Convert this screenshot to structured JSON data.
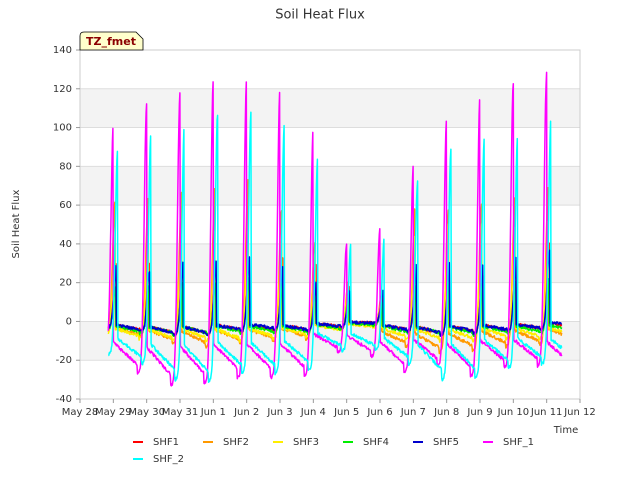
{
  "chart_data": {
    "type": "line",
    "title": "Soil Heat Flux",
    "xlabel": "Time",
    "ylabel": "Soil Heat Flux",
    "tag": "TZ_fmet",
    "ylim": [
      -40,
      140
    ],
    "yticks": [
      -40,
      -20,
      0,
      20,
      40,
      60,
      80,
      100,
      120,
      140
    ],
    "xlim": [
      0,
      15
    ],
    "xtick_labels": [
      "May 28",
      "May 29",
      "May 30",
      "May 31",
      "Jun 1",
      "Jun 2",
      "Jun 3",
      "Jun 4",
      "Jun 5",
      "Jun 6",
      "Jun 7",
      "Jun 8",
      "Jun 9",
      "Jun 10",
      "Jun 11",
      "Jun 12"
    ],
    "x_start": 0.85,
    "x_end": 14.45,
    "series": [
      {
        "name": "SHF1",
        "color": "#ff0000",
        "peak_offset": 0.03,
        "daily_peaks": [
          30,
          30,
          30,
          30,
          34,
          32,
          30,
          18,
          14,
          14,
          28,
          24,
          28,
          40,
          38
        ],
        "daily_mins": [
          -3,
          -5,
          -7,
          -7,
          -5,
          -5,
          -5,
          -3,
          -1,
          -5,
          -7,
          -6,
          -5,
          -4,
          -3
        ]
      },
      {
        "name": "SHF2",
        "color": "#ff9900",
        "peak_offset": 0.0,
        "daily_peaks": [
          62,
          63,
          67,
          70,
          75,
          57,
          40,
          20,
          13,
          59,
          57,
          60,
          64,
          69,
          68
        ],
        "daily_mins": [
          -6,
          -8,
          -11,
          -13,
          -11,
          -10,
          -9,
          -4,
          -2,
          -13,
          -16,
          -15,
          -13,
          -12,
          -10
        ]
      },
      {
        "name": "SHF3",
        "color": "#ffee00",
        "peak_offset": 0.0,
        "daily_peaks": [
          40,
          44,
          45,
          48,
          48,
          42,
          35,
          20,
          10,
          44,
          50,
          50,
          48,
          52,
          50
        ],
        "daily_mins": [
          -7,
          -9,
          -10,
          -10,
          -10,
          -9,
          -8,
          -5,
          -3,
          -9,
          -10,
          -10,
          -9,
          -9,
          -8
        ]
      },
      {
        "name": "SHF4",
        "color": "#00ee00",
        "peak_offset": 0.02,
        "daily_peaks": [
          18,
          18,
          20,
          20,
          22,
          20,
          18,
          15,
          10,
          18,
          22,
          20,
          20,
          22,
          22
        ],
        "daily_mins": [
          -4,
          -6,
          -7,
          -7,
          -6,
          -6,
          -6,
          -4,
          -2,
          -6,
          -7,
          -7,
          -6,
          -6,
          -5
        ]
      },
      {
        "name": "SHF5",
        "color": "#0000cc",
        "peak_offset": 0.04,
        "daily_peaks": [
          29,
          26,
          30,
          31,
          34,
          28,
          20,
          16,
          16,
          29,
          30,
          30,
          33,
          37,
          35
        ],
        "daily_mins": [
          -3,
          -5,
          -7,
          -7,
          -5,
          -4,
          -5,
          -3,
          -1,
          -5,
          -7,
          -6,
          -5,
          -4,
          -2
        ]
      },
      {
        "name": "SHF_1",
        "color": "#ff00ff",
        "peak_offset": -0.05,
        "daily_peaks": [
          102,
          112,
          118,
          125,
          125,
          121,
          100,
          40,
          48,
          80,
          105,
          117,
          122,
          128,
          128
        ],
        "daily_mins": [
          -19,
          -27,
          -33,
          -32,
          -29,
          -29,
          -28,
          -16,
          -18,
          -26,
          -23,
          -28,
          -24,
          -23,
          -26
        ]
      },
      {
        "name": "SHF_2",
        "color": "#00ffff",
        "peak_offset": 0.08,
        "daily_peaks": [
          88,
          97,
          101,
          107,
          108,
          101,
          84,
          40,
          43,
          72,
          89,
          95,
          96,
          105,
          110
        ],
        "daily_mins": [
          -17,
          -22,
          -30,
          -31,
          -27,
          -27,
          -25,
          -15,
          -15,
          -22,
          -30,
          -29,
          -24,
          -22,
          -23
        ]
      }
    ],
    "legend": [
      "SHF1",
      "SHF2",
      "SHF3",
      "SHF4",
      "SHF5",
      "SHF_1",
      "SHF_2"
    ],
    "legend_position": "bottom-center"
  }
}
